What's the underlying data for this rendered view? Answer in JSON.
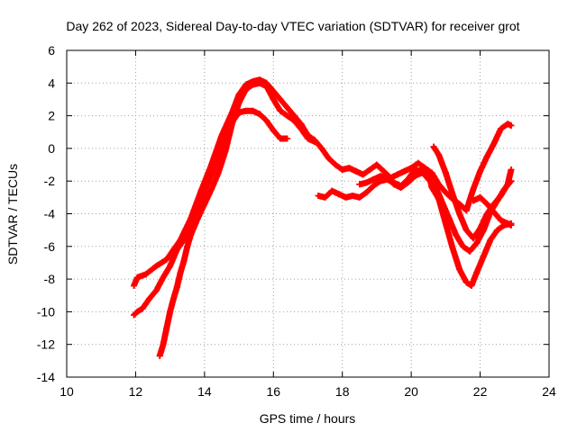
{
  "chart_data": {
    "type": "scatter",
    "title": "Day 262 of 2023, Sidereal Day-to-day VTEC variation (SDTVAR) for receiver grot",
    "xlabel": "GPS time / hours",
    "ylabel": "SDTVAR / TECUs",
    "xlim": [
      10,
      24
    ],
    "ylim": [
      -14,
      6
    ],
    "xticks": [
      10,
      12,
      14,
      16,
      18,
      20,
      22,
      24
    ],
    "yticks": [
      -14,
      -12,
      -10,
      -8,
      -6,
      -4,
      -2,
      0,
      2,
      4,
      6
    ],
    "grid": true,
    "marker": "+",
    "color": "#ff0000",
    "series": [
      {
        "name": "track-a",
        "points": [
          [
            11.95,
            -8.4
          ],
          [
            12.05,
            -7.9
          ],
          [
            12.3,
            -7.7
          ],
          [
            12.6,
            -7.2
          ],
          [
            12.9,
            -6.8
          ],
          [
            13.1,
            -6.2
          ],
          [
            13.3,
            -5.6
          ],
          [
            13.6,
            -4.3
          ],
          [
            13.9,
            -2.6
          ],
          [
            14.2,
            -1.0
          ],
          [
            14.5,
            0.8
          ],
          [
            14.8,
            2.2
          ],
          [
            15.0,
            3.3
          ],
          [
            15.2,
            3.9
          ],
          [
            15.4,
            4.1
          ],
          [
            15.6,
            4.2
          ],
          [
            15.8,
            4.0
          ],
          [
            16.0,
            3.5
          ],
          [
            16.2,
            3.0
          ],
          [
            16.4,
            2.5
          ],
          [
            16.6,
            2.0
          ],
          [
            16.8,
            1.5
          ],
          [
            17.0,
            0.8
          ],
          [
            17.2,
            0.5
          ],
          [
            17.4,
            0.0
          ],
          [
            17.6,
            -0.6
          ],
          [
            17.8,
            -1.0
          ],
          [
            18.0,
            -1.3
          ],
          [
            18.2,
            -1.2
          ],
          [
            18.4,
            -1.4
          ],
          [
            18.6,
            -1.6
          ],
          [
            18.8,
            -1.3
          ],
          [
            19.0,
            -1.0
          ],
          [
            19.2,
            -1.4
          ],
          [
            19.4,
            -1.8
          ],
          [
            19.6,
            -1.6
          ],
          [
            19.8,
            -1.4
          ],
          [
            20.0,
            -1.2
          ],
          [
            20.2,
            -0.9
          ],
          [
            20.4,
            -1.2
          ],
          [
            20.6,
            -1.5
          ],
          [
            20.8,
            -2.2
          ],
          [
            21.0,
            -2.7
          ],
          [
            21.2,
            -3.1
          ],
          [
            21.4,
            -3.4
          ],
          [
            21.6,
            -3.8
          ],
          [
            21.8,
            -2.5
          ],
          [
            22.0,
            -1.4
          ],
          [
            22.2,
            -0.5
          ],
          [
            22.4,
            0.3
          ],
          [
            22.6,
            1.2
          ],
          [
            22.8,
            1.5
          ],
          [
            22.9,
            1.4
          ]
        ]
      },
      {
        "name": "track-b",
        "points": [
          [
            11.95,
            -10.2
          ],
          [
            12.05,
            -10.0
          ],
          [
            12.2,
            -9.8
          ],
          [
            12.4,
            -9.2
          ],
          [
            12.6,
            -8.7
          ],
          [
            12.8,
            -7.9
          ],
          [
            13.0,
            -7.2
          ],
          [
            13.2,
            -6.2
          ],
          [
            13.4,
            -5.6
          ],
          [
            13.6,
            -4.7
          ],
          [
            13.8,
            -3.6
          ],
          [
            14.0,
            -2.6
          ],
          [
            14.2,
            -1.6
          ],
          [
            14.4,
            -0.6
          ],
          [
            14.6,
            0.6
          ],
          [
            14.8,
            1.6
          ],
          [
            15.0,
            2.2
          ],
          [
            15.2,
            2.3
          ],
          [
            15.4,
            2.3
          ],
          [
            15.6,
            2.1
          ],
          [
            15.8,
            1.7
          ],
          [
            16.0,
            1.1
          ],
          [
            16.2,
            0.6
          ],
          [
            16.4,
            0.6
          ]
        ]
      },
      {
        "name": "track-c",
        "points": [
          [
            12.7,
            -12.7
          ],
          [
            12.8,
            -12.0
          ],
          [
            12.9,
            -11.0
          ],
          [
            13.0,
            -10.0
          ],
          [
            13.1,
            -9.2
          ],
          [
            13.2,
            -8.5
          ],
          [
            13.3,
            -7.6
          ],
          [
            13.4,
            -6.9
          ],
          [
            13.5,
            -6.0
          ],
          [
            13.6,
            -5.3
          ],
          [
            13.8,
            -4.3
          ],
          [
            14.0,
            -3.4
          ],
          [
            14.2,
            -2.5
          ],
          [
            14.4,
            -1.5
          ],
          [
            14.6,
            -0.2
          ],
          [
            14.8,
            1.5
          ],
          [
            15.0,
            2.8
          ],
          [
            15.2,
            3.6
          ],
          [
            15.4,
            3.9
          ],
          [
            15.6,
            4.0
          ],
          [
            15.8,
            3.8
          ],
          [
            16.0,
            3.0
          ],
          [
            16.2,
            2.3
          ],
          [
            16.4,
            2.0
          ],
          [
            16.6,
            1.7
          ],
          [
            16.8,
            1.2
          ],
          [
            17.0,
            0.6
          ],
          [
            17.2,
            0.4
          ]
        ]
      },
      {
        "name": "track-d",
        "points": [
          [
            17.3,
            -2.9
          ],
          [
            17.5,
            -3.0
          ],
          [
            17.7,
            -2.6
          ],
          [
            17.9,
            -2.8
          ],
          [
            18.1,
            -3.0
          ],
          [
            18.3,
            -2.9
          ],
          [
            18.5,
            -3.0
          ],
          [
            18.7,
            -2.7
          ],
          [
            18.9,
            -2.3
          ],
          [
            19.1,
            -2.0
          ],
          [
            19.3,
            -1.9
          ],
          [
            19.5,
            -2.1
          ],
          [
            19.7,
            -2.3
          ],
          [
            19.9,
            -1.9
          ],
          [
            20.1,
            -1.3
          ],
          [
            20.3,
            -1.4
          ],
          [
            20.5,
            -1.9
          ],
          [
            20.7,
            -2.3
          ],
          [
            20.9,
            -3.3
          ],
          [
            21.1,
            -4.3
          ],
          [
            21.3,
            -5.3
          ],
          [
            21.5,
            -6.0
          ],
          [
            21.7,
            -6.3
          ],
          [
            21.9,
            -5.8
          ],
          [
            22.1,
            -5.0
          ],
          [
            22.3,
            -3.9
          ],
          [
            22.5,
            -3.2
          ],
          [
            22.7,
            -2.5
          ],
          [
            22.9,
            -2.0
          ]
        ]
      },
      {
        "name": "track-e",
        "points": [
          [
            18.5,
            -2.2
          ],
          [
            18.7,
            -2.1
          ],
          [
            18.9,
            -1.9
          ],
          [
            19.1,
            -1.7
          ],
          [
            19.3,
            -1.8
          ],
          [
            19.5,
            -2.2
          ],
          [
            19.7,
            -2.4
          ],
          [
            19.9,
            -2.1
          ],
          [
            20.1,
            -1.7
          ],
          [
            20.3,
            -1.5
          ],
          [
            20.5,
            -1.5
          ],
          [
            20.6,
            -2.4
          ],
          [
            20.8,
            -3.1
          ],
          [
            21.0,
            -4.6
          ],
          [
            21.2,
            -6.1
          ],
          [
            21.4,
            -7.4
          ],
          [
            21.6,
            -8.2
          ],
          [
            21.75,
            -8.4
          ],
          [
            21.9,
            -7.6
          ],
          [
            22.1,
            -6.6
          ],
          [
            22.3,
            -5.6
          ],
          [
            22.5,
            -5.0
          ],
          [
            22.7,
            -4.7
          ],
          [
            22.9,
            -4.6
          ]
        ]
      },
      {
        "name": "track-f",
        "points": [
          [
            20.65,
            0.1
          ],
          [
            20.8,
            -0.4
          ],
          [
            21.0,
            -1.5
          ],
          [
            21.2,
            -2.8
          ],
          [
            21.4,
            -4.0
          ],
          [
            21.6,
            -5.0
          ],
          [
            21.8,
            -5.5
          ],
          [
            22.0,
            -4.9
          ],
          [
            22.2,
            -4.0
          ],
          [
            22.4,
            -3.4
          ],
          [
            22.6,
            -2.9
          ],
          [
            22.8,
            -2.2
          ],
          [
            22.9,
            -1.3
          ]
        ]
      },
      {
        "name": "track-g",
        "points": [
          [
            21.8,
            -3.2
          ],
          [
            22.0,
            -3.0
          ],
          [
            22.2,
            -3.4
          ],
          [
            22.4,
            -3.9
          ],
          [
            22.6,
            -4.4
          ],
          [
            22.8,
            -4.6
          ],
          [
            22.9,
            -4.7
          ]
        ]
      }
    ]
  }
}
